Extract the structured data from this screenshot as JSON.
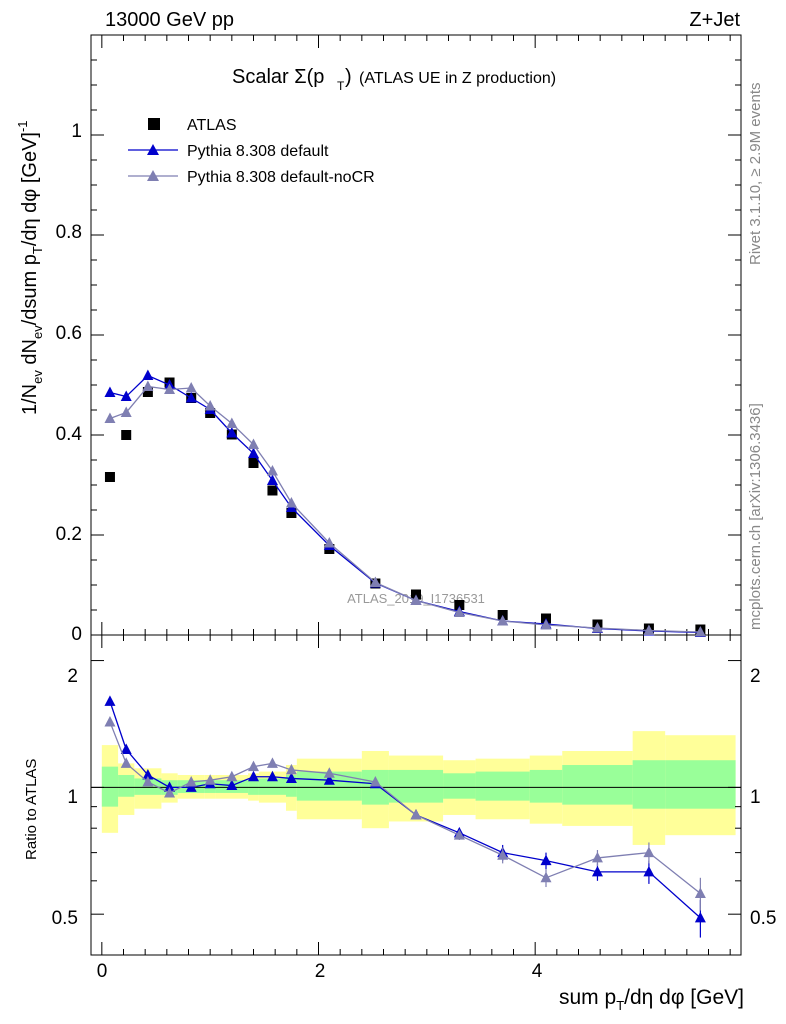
{
  "header": {
    "left": "13000 GeV pp",
    "right": "Z+Jet",
    "title_main": "Scalar Σ(p",
    "title_sub": "T",
    "title_close": ")",
    "title_paren": "(ATLAS UE in Z production)",
    "watermark": "ATLAS_2019_I1736531"
  },
  "side": {
    "rivet": "Rivet 3.1.10, ≥ 2.9M events",
    "mcplots": "mcplots.cern.ch [arXiv:1306.3436]"
  },
  "axes": {
    "ylabel_main": "1/N_ev dN_ev/dsum p_T/dη dφ [GeV]^-1",
    "ylabel_ratio": "Ratio to ATLAS",
    "xlabel": "sum p_T/dη dφ [GeV]",
    "xticks": [
      "0",
      "2",
      "4"
    ],
    "yticks_main": [
      "0",
      "0.2",
      "0.4",
      "0.6",
      "0.8",
      "1"
    ],
    "yticks_ratio": [
      "0.5",
      "1",
      "2"
    ]
  },
  "legend": [
    {
      "label": "ATLAS",
      "color": "#000000",
      "marker": "square"
    },
    {
      "label": "Pythia 8.308 default",
      "color": "#0000cc",
      "marker": "triangle"
    },
    {
      "label": "Pythia 8.308 default-noCR",
      "color": "#7f7fb2",
      "marker": "triangle"
    }
  ],
  "chart_data": [
    {
      "type": "line",
      "panel": "main",
      "xlim": [
        -0.1,
        5.9
      ],
      "ylim": [
        0,
        1.2
      ],
      "x": [
        0.075,
        0.225,
        0.425,
        0.625,
        0.825,
        1.0,
        1.2,
        1.4,
        1.575,
        1.75,
        2.1,
        2.525,
        2.9,
        3.3,
        3.7,
        4.1,
        4.575,
        5.05,
        5.525
      ],
      "series": [
        {
          "name": "ATLAS",
          "values": [
            0.316,
            0.4,
            0.486,
            0.505,
            0.474,
            0.444,
            0.401,
            0.344,
            0.289,
            0.244,
            0.172,
            0.103,
            0.081,
            0.06,
            0.04,
            0.033,
            0.021,
            0.013,
            0.011
          ]
        },
        {
          "name": "Pythia 8.308 default",
          "values": [
            0.485,
            0.477,
            0.519,
            0.5,
            0.474,
            0.451,
            0.404,
            0.363,
            0.309,
            0.255,
            0.179,
            0.104,
            0.069,
            0.047,
            0.028,
            0.022,
            0.013,
            0.008,
            0.005
          ]
        },
        {
          "name": "Pythia 8.308 default-noCR",
          "values": [
            0.433,
            0.445,
            0.497,
            0.491,
            0.494,
            0.458,
            0.423,
            0.381,
            0.328,
            0.264,
            0.184,
            0.105,
            0.069,
            0.045,
            0.028,
            0.02,
            0.014,
            0.009,
            0.006
          ]
        }
      ]
    },
    {
      "type": "line",
      "panel": "ratio",
      "xlim": [
        -0.1,
        5.9
      ],
      "ylim": [
        0.4,
        2.3
      ],
      "x": [
        0.075,
        0.225,
        0.425,
        0.625,
        0.825,
        1.0,
        1.2,
        1.4,
        1.575,
        1.75,
        2.1,
        2.525,
        2.9,
        3.3,
        3.7,
        4.1,
        4.575,
        5.05,
        5.525
      ],
      "bin_edges": [
        0.0,
        0.15,
        0.3,
        0.55,
        0.7,
        0.95,
        1.05,
        1.35,
        1.45,
        1.7,
        1.8,
        2.4,
        2.65,
        3.15,
        3.45,
        3.95,
        4.25,
        4.9,
        5.2,
        5.85
      ],
      "bands": {
        "green_lo": [
          0.9,
          0.95,
          0.96,
          0.96,
          0.97,
          0.97,
          0.97,
          0.96,
          0.96,
          0.95,
          0.93,
          0.91,
          0.92,
          0.94,
          0.93,
          0.92,
          0.91,
          0.89,
          0.89
        ],
        "green_hi": [
          1.12,
          1.07,
          1.05,
          1.04,
          1.04,
          1.04,
          1.04,
          1.05,
          1.05,
          1.07,
          1.09,
          1.1,
          1.1,
          1.08,
          1.09,
          1.1,
          1.13,
          1.16,
          1.16
        ],
        "yellow_lo": [
          0.78,
          0.86,
          0.89,
          0.92,
          0.94,
          0.94,
          0.94,
          0.93,
          0.92,
          0.88,
          0.84,
          0.8,
          0.83,
          0.86,
          0.84,
          0.82,
          0.81,
          0.73,
          0.77
        ],
        "yellow_hi": [
          1.26,
          1.14,
          1.11,
          1.08,
          1.07,
          1.07,
          1.07,
          1.08,
          1.09,
          1.13,
          1.17,
          1.22,
          1.19,
          1.16,
          1.17,
          1.19,
          1.22,
          1.36,
          1.33
        ]
      },
      "series": [
        {
          "name": "Pythia 8.308 default",
          "values": [
            1.6,
            1.23,
            1.07,
            1.0,
            1.0,
            1.02,
            1.01,
            1.06,
            1.06,
            1.05,
            1.04,
            1.02,
            0.86,
            0.78,
            0.7,
            0.67,
            0.63,
            0.63,
            0.49
          ],
          "err": [
            0.02,
            0.02,
            0.01,
            0.01,
            0.01,
            0.01,
            0.01,
            0.01,
            0.01,
            0.01,
            0.01,
            0.01,
            0.02,
            0.02,
            0.03,
            0.03,
            0.03,
            0.04,
            0.05
          ]
        },
        {
          "name": "Pythia 8.308 default-noCR",
          "values": [
            1.43,
            1.14,
            1.03,
            0.97,
            1.03,
            1.04,
            1.06,
            1.12,
            1.14,
            1.1,
            1.08,
            1.03,
            0.86,
            0.77,
            0.69,
            0.61,
            0.68,
            0.7,
            0.56
          ],
          "err": [
            0.02,
            0.02,
            0.01,
            0.01,
            0.01,
            0.01,
            0.01,
            0.01,
            0.01,
            0.01,
            0.01,
            0.01,
            0.02,
            0.02,
            0.03,
            0.03,
            0.03,
            0.04,
            0.05
          ]
        }
      ]
    }
  ]
}
